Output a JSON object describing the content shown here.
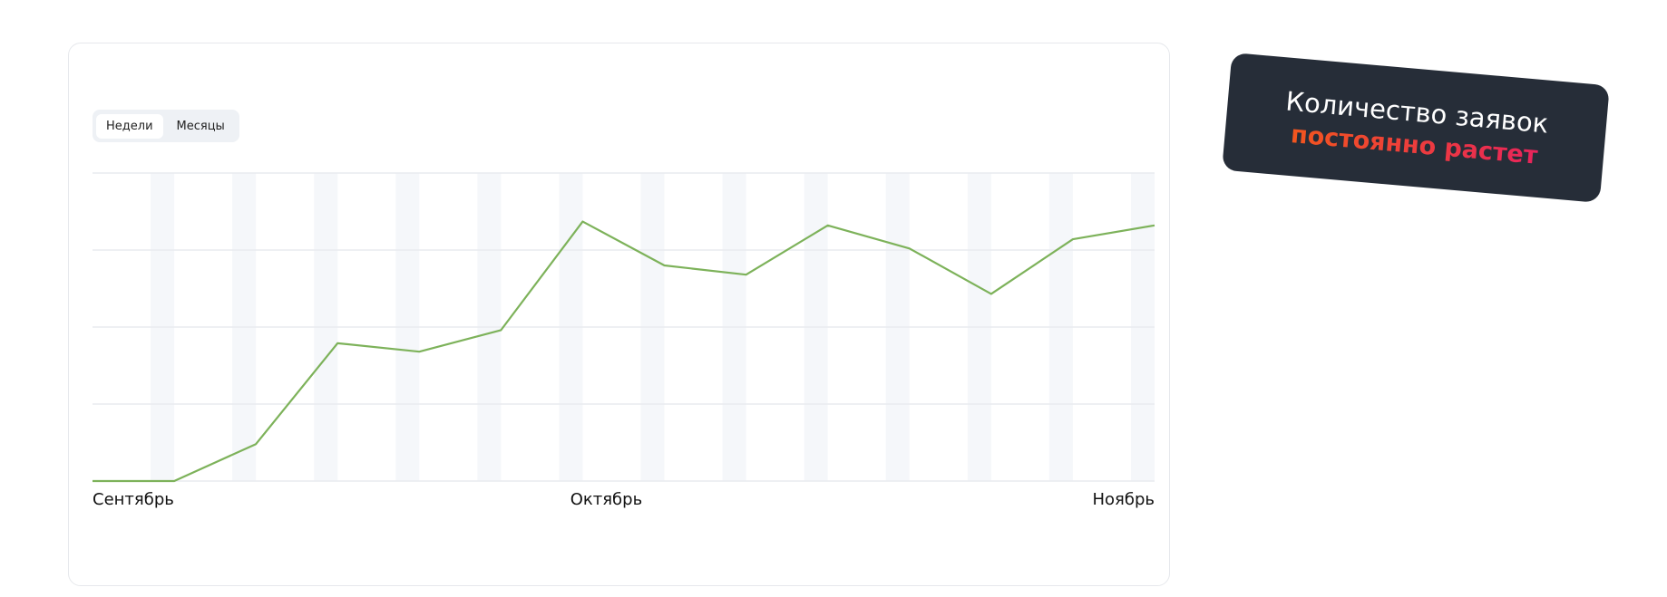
{
  "chart_data": {
    "type": "line",
    "categories": [
      "Сентябрь",
      null,
      null,
      null,
      null,
      null,
      "Октябрь",
      null,
      null,
      null,
      null,
      null,
      null,
      "Ноябрь"
    ],
    "series": [
      {
        "color": "#7db25a",
        "values": [
          0,
          0,
          0.48,
          1.79,
          1.68,
          1.96,
          3.37,
          2.8,
          2.68,
          3.32,
          3.02,
          2.43,
          3.14,
          3.32
        ]
      }
    ],
    "ylim": [
      0,
      4
    ],
    "yticks": [
      0,
      1,
      2,
      3,
      4
    ],
    "grid": true
  },
  "toggle": [
    "Недели",
    "Месяцы"
  ],
  "badge": {
    "line1": "Количество заявок",
    "line2": "постоянно растет"
  }
}
